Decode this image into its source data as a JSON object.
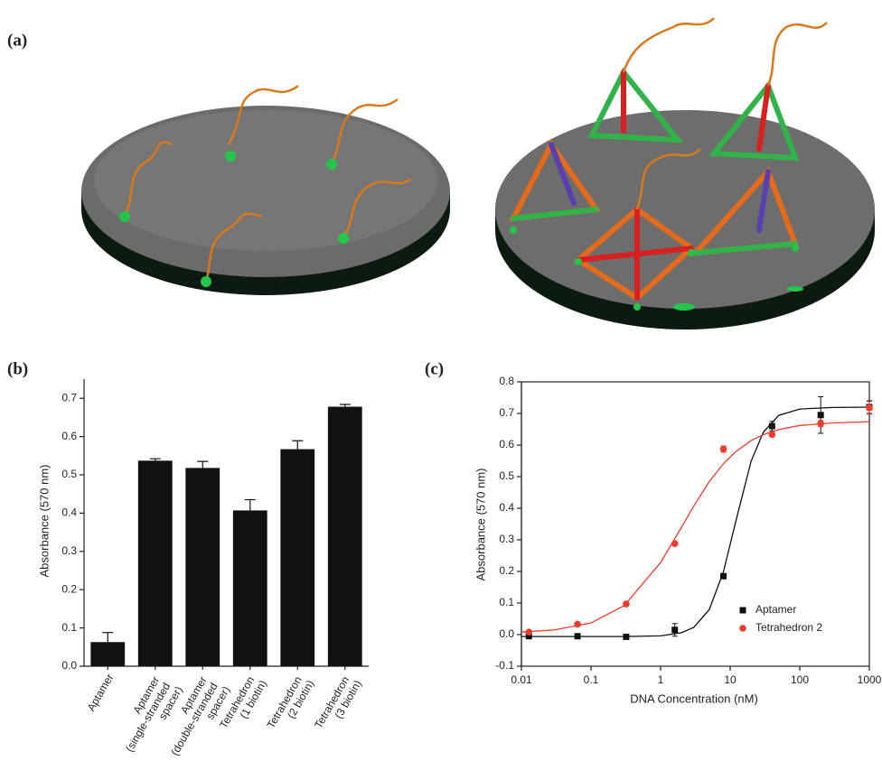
{
  "panel_labels": [
    "(a)",
    "(b)",
    "(c)"
  ],
  "chart_data": [
    {
      "type": "bar",
      "y_label": "Absorbance (570 nm)",
      "categories": [
        "Aptamer",
        "Aptamer (single-stranded spacer)",
        "Aptamer (double-stranded spacer)",
        "Tetrahedron (1 biotin)",
        "Tetrahedron (2 biotin)",
        "Tetrahedron (3 biotin)"
      ],
      "values": [
        0.063,
        0.537,
        0.518,
        0.407,
        0.567,
        0.678
      ],
      "errors": [
        0.025,
        0.005,
        0.017,
        0.028,
        0.022,
        0.006
      ],
      "color": "#111111",
      "ylim": [
        0,
        0.75
      ],
      "yticks": [
        {
          "value": 0,
          "label": "0.0"
        },
        0.1,
        0.2,
        0.3,
        0.4,
        0.5,
        0.6,
        0.7
      ]
    },
    {
      "type": "scatter",
      "x_label": "DNA Concentration (nM)",
      "y_label": "Absorbance (570 nm)",
      "x_scale": "log",
      "xlim": [
        0.01,
        1000
      ],
      "xticks": [
        0.01,
        0.1,
        1,
        10,
        100,
        1000
      ],
      "ylim": [
        -0.1,
        0.8
      ],
      "yticks": [
        -0.1,
        {
          "value": 0,
          "label": "0.0"
        },
        0.1,
        0.2,
        0.3,
        0.4,
        0.5,
        0.6,
        0.7,
        0.8
      ],
      "legend": "lower right",
      "series": [
        {
          "name": "Aptamer",
          "color": "#111111",
          "marker": "square",
          "x": [
            0.0128,
            0.064,
            0.32,
            1.6,
            8,
            40,
            200,
            1000
          ],
          "values": [
            -0.005,
            -0.005,
            -0.007,
            0.015,
            0.185,
            0.66,
            0.695,
            0.72
          ],
          "errors": [
            0.005,
            0.003,
            0.003,
            0.02,
            0.005,
            0.015,
            0.058,
            0.02
          ],
          "fit": {
            "x": [
              0.01,
              0.03,
              0.1,
              0.3,
              1,
              2,
              3,
              5,
              8,
              12,
              20,
              30,
              50,
              100,
              300,
              1000
            ],
            "values": [
              -0.006,
              -0.006,
              -0.006,
              -0.006,
              -0.004,
              0.006,
              0.023,
              0.079,
              0.199,
              0.357,
              0.549,
              0.641,
              0.694,
              0.714,
              0.719,
              0.72
            ]
          }
        },
        {
          "name": "Tetrahedron 2",
          "color": "#ee3b30",
          "marker": "circle",
          "x": [
            0.0128,
            0.064,
            0.32,
            1.6,
            8,
            40,
            200,
            1000
          ],
          "values": [
            0.008,
            0.033,
            0.097,
            0.288,
            0.587,
            0.633,
            0.668,
            0.718
          ],
          "errors": [
            0.005,
            0.003,
            0.003,
            0.005,
            0.01,
            0.005,
            0.01,
            0.02
          ],
          "fit": {
            "x": [
              0.01,
              0.03,
              0.1,
              0.3,
              1,
              2,
              3,
              5,
              8,
              12,
              20,
              30,
              50,
              100,
              300,
              1000
            ],
            "values": [
              0.008,
              0.015,
              0.037,
              0.092,
              0.228,
              0.34,
              0.407,
              0.484,
              0.541,
              0.579,
              0.614,
              0.633,
              0.649,
              0.662,
              0.67,
              0.674
            ]
          }
        }
      ]
    }
  ]
}
